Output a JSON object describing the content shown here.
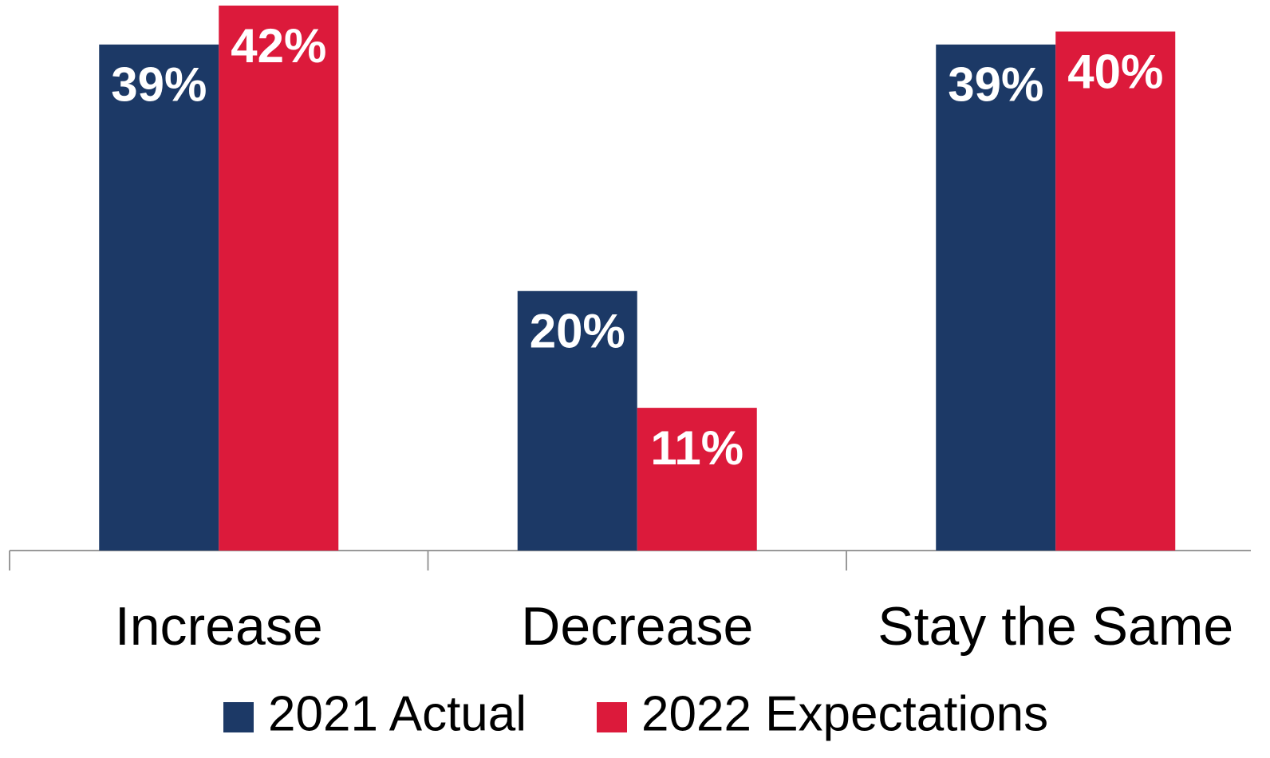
{
  "chart_data": {
    "type": "bar",
    "categories": [
      "Increase",
      "Decrease",
      "Stay the Same"
    ],
    "series": [
      {
        "name": "2021 Actual",
        "color": "#1c3966",
        "values": [
          39,
          20,
          39
        ],
        "value_labels": [
          "39%",
          "20%",
          "39%"
        ]
      },
      {
        "name": "2022 Expectations",
        "color": "#dc1a3b",
        "values": [
          42,
          11,
          40
        ],
        "value_labels": [
          "42%",
          "11%",
          "40%"
        ]
      }
    ],
    "grid": false
  }
}
